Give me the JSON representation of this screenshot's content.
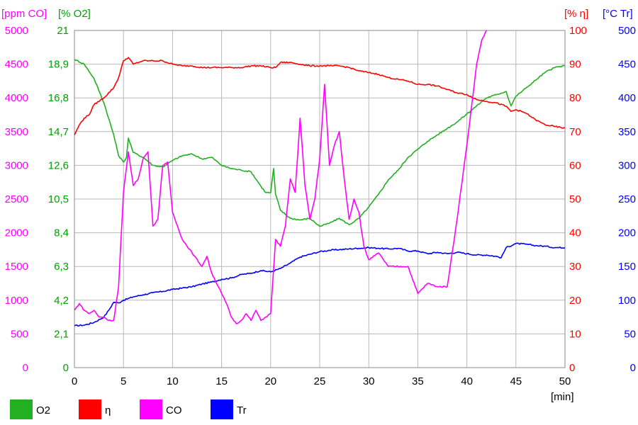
{
  "chart_data": {
    "type": "line",
    "x_unit_label": "[min]",
    "xlim": [
      0,
      50
    ],
    "x_ticks": [
      "0",
      "5",
      "10",
      "15",
      "20",
      "25",
      "30",
      "35",
      "40",
      "45",
      "50"
    ],
    "grid": true,
    "legend_position": "bottom-left",
    "axes": {
      "co": {
        "unit_label": "[ppm CO]",
        "color": "#ff00ff",
        "range": [
          0,
          5000
        ],
        "ticks": [
          "0",
          "500",
          "1000",
          "1500",
          "2000",
          "2500",
          "3000",
          "3500",
          "4000",
          "4500",
          "5000"
        ]
      },
      "o2": {
        "unit_label": "[% O2]",
        "color": "#00a000",
        "range": [
          0,
          21
        ],
        "ticks": [
          "0",
          "2,1",
          "4,2",
          "6,3",
          "8,4",
          "10,5",
          "12,6",
          "14,7",
          "16,8",
          "18,9",
          "21"
        ]
      },
      "eta": {
        "unit_label": "[% η]",
        "color": "#ff0000",
        "range": [
          0,
          100
        ],
        "ticks": [
          "0",
          "10",
          "20",
          "30",
          "40",
          "50",
          "60",
          "70",
          "80",
          "90",
          "100"
        ]
      },
      "tr": {
        "unit_label": "[°C Tr]",
        "color": "#0000ff",
        "range": [
          0,
          500
        ],
        "ticks": [
          "0",
          "50",
          "100",
          "150",
          "200",
          "250",
          "300",
          "350",
          "400",
          "450",
          "500"
        ]
      }
    },
    "series": [
      {
        "name": "O2",
        "axis": "o2",
        "color": "#20b020",
        "x": [
          0,
          1,
          2,
          3,
          4,
          4.5,
          5,
          5.3,
          5.5,
          6,
          7,
          8,
          9,
          10,
          11,
          12,
          13,
          14,
          15,
          16,
          17,
          18,
          19,
          19.5,
          20,
          20.3,
          20.5,
          21,
          22,
          23,
          24,
          25,
          26,
          27,
          28,
          29,
          30,
          31,
          32,
          33,
          34,
          35,
          36,
          37,
          38,
          39,
          40,
          41,
          42,
          43,
          44,
          44.5,
          45,
          46,
          47,
          48,
          49,
          50
        ],
        "y": [
          19.2,
          18.9,
          18.0,
          16.5,
          14.5,
          13.2,
          12.8,
          13.1,
          14.3,
          13.4,
          13.1,
          12.6,
          12.5,
          12.9,
          13.2,
          13.3,
          13.0,
          13.1,
          12.6,
          12.4,
          12.3,
          12.2,
          11.3,
          10.9,
          10.9,
          12.4,
          10.8,
          9.8,
          9.3,
          9.2,
          9.3,
          8.8,
          9.0,
          9.3,
          8.9,
          9.3,
          10.0,
          10.8,
          11.7,
          12.3,
          13.1,
          13.6,
          14.1,
          14.5,
          14.9,
          15.3,
          15.8,
          16.3,
          16.8,
          17.0,
          17.2,
          16.3,
          16.9,
          17.4,
          17.9,
          18.4,
          18.7,
          18.8
        ]
      },
      {
        "name": "η",
        "axis": "eta",
        "color": "#ff0000",
        "x": [
          0,
          0.5,
          1,
          1.5,
          2,
          3,
          4,
          4.5,
          5,
          5.5,
          6,
          7,
          8,
          9,
          10,
          11,
          12,
          13,
          14,
          15,
          16,
          17,
          18,
          19,
          20,
          20.5,
          21,
          22,
          23,
          24,
          25,
          26,
          27,
          28,
          29,
          30,
          31,
          32,
          33,
          34,
          35,
          36,
          37,
          38,
          39,
          40,
          41,
          42,
          43,
          44,
          44.5,
          45,
          46,
          47,
          48,
          49,
          50
        ],
        "y": [
          69,
          72,
          74,
          75,
          78,
          80,
          83,
          86,
          91,
          92,
          90,
          91,
          91,
          91,
          90,
          89.5,
          89.5,
          89,
          89,
          89,
          89,
          89,
          89.5,
          89.5,
          89,
          89,
          90.5,
          90.5,
          90,
          89.5,
          89.5,
          89.5,
          89.5,
          89,
          88,
          87.5,
          87,
          86,
          85.5,
          85,
          84,
          84,
          83.5,
          82.5,
          81.5,
          81,
          79.5,
          79,
          78.5,
          77.5,
          76,
          76.5,
          75.5,
          73.5,
          72,
          71.5,
          71
        ]
      },
      {
        "name": "CO",
        "axis": "co",
        "color": "#ff00ff",
        "x": [
          0,
          0.5,
          1,
          1.5,
          2,
          2.5,
          3,
          3.5,
          4,
          4.5,
          5,
          5.5,
          6,
          6.5,
          7,
          7.5,
          8,
          8.5,
          9,
          9.5,
          10,
          11,
          12,
          13,
          13.5,
          14,
          15,
          15.5,
          16,
          16.5,
          17,
          17.5,
          18,
          18.5,
          19,
          19.5,
          20,
          20.5,
          21,
          21.5,
          22,
          22.5,
          23,
          23.5,
          24,
          24.5,
          25,
          25.5,
          26,
          26.5,
          27,
          27.5,
          28,
          28.5,
          29,
          29.5,
          30,
          31,
          32,
          33,
          34,
          35,
          36,
          37,
          38,
          39,
          40,
          41,
          41.5,
          42
        ],
        "y": [
          850,
          950,
          850,
          800,
          850,
          750,
          750,
          700,
          700,
          1200,
          2600,
          3200,
          2700,
          2800,
          3100,
          3200,
          2100,
          2200,
          3000,
          3050,
          2300,
          1900,
          1700,
          1500,
          1650,
          1400,
          1100,
          950,
          750,
          650,
          700,
          800,
          700,
          850,
          700,
          750,
          800,
          1900,
          1800,
          2100,
          2800,
          2600,
          3700,
          2700,
          2200,
          2500,
          3100,
          4200,
          3000,
          3300,
          3500,
          2800,
          2200,
          2500,
          2300,
          1800,
          1600,
          1700,
          1500,
          1500,
          1500,
          1100,
          1250,
          1200,
          1200,
          2200,
          3300,
          4500,
          4850,
          5000
        ]
      },
      {
        "name": "Tr",
        "axis": "tr",
        "color": "#0000ff",
        "x": [
          0,
          1,
          2,
          3,
          3.5,
          4,
          4.5,
          5,
          6,
          7,
          8,
          9,
          10,
          11,
          12,
          13,
          14,
          15,
          16,
          17,
          18,
          19,
          20,
          21,
          22,
          23,
          24,
          25,
          26,
          27,
          28,
          29,
          30,
          31,
          32,
          33,
          34,
          35,
          36,
          37,
          38,
          39,
          40,
          41,
          42,
          43,
          43.5,
          44,
          45,
          46,
          47,
          48,
          49,
          50
        ],
        "y": [
          62,
          63,
          67,
          75,
          85,
          97,
          96,
          100,
          105,
          108,
          111,
          113,
          116,
          118,
          120,
          124,
          127,
          131,
          133,
          138,
          140,
          144,
          142,
          147,
          155,
          164,
          168,
          172,
          174,
          175,
          176,
          177,
          178,
          177,
          176,
          177,
          173,
          173,
          169,
          171,
          169,
          171,
          169,
          167,
          167,
          165,
          163,
          178,
          184,
          183,
          181,
          180,
          178,
          178
        ]
      }
    ]
  },
  "legend": [
    {
      "label": "O2",
      "color": "#22b022"
    },
    {
      "label": "η",
      "color": "#ff0000"
    },
    {
      "label": "CO",
      "color": "#ff00ff"
    },
    {
      "label": "Tr",
      "color": "#0000ff"
    }
  ]
}
